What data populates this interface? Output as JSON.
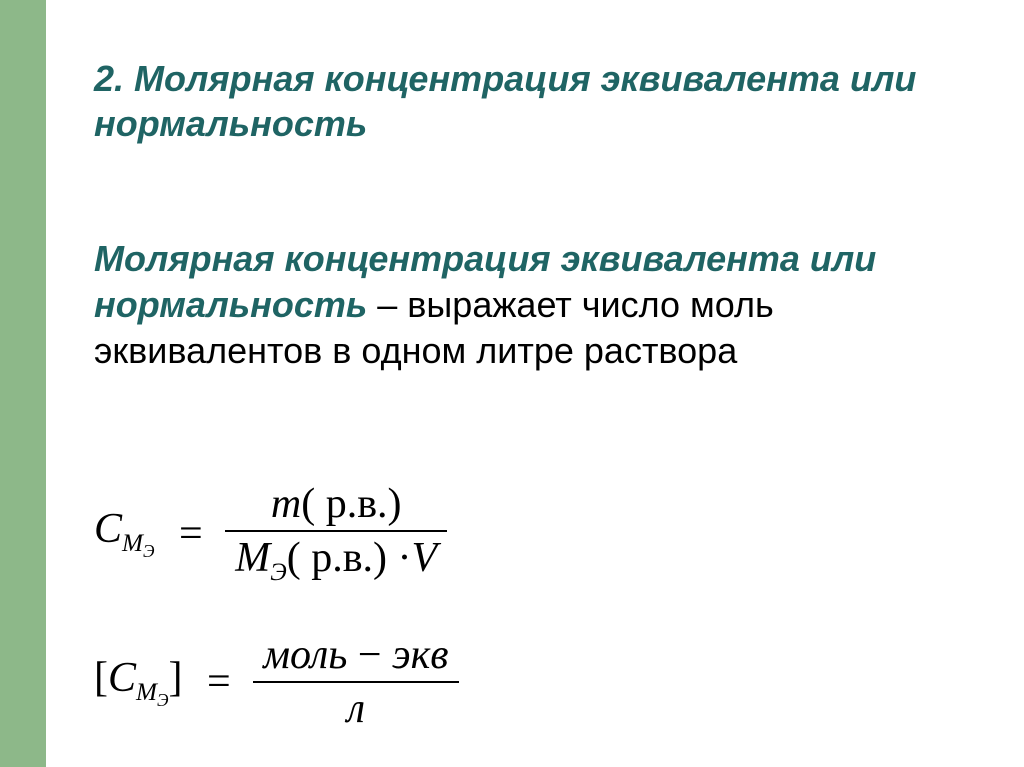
{
  "colors": {
    "sidebar": "#8db889",
    "title": "#1f6464",
    "body_em": "#1f6464",
    "body_plain": "#000000",
    "formula": "#000000",
    "background": "#ffffff"
  },
  "title": "2. Молярная концентрация эквивалента или нормальность",
  "body": {
    "emphasis": "Молярная концентрация эквивалента или нормальность",
    "dash": " – ",
    "plain": "выражает число моль эквивалентов в одном литре раствора"
  },
  "formula1": {
    "lhs_C": "C",
    "lhs_M": "M",
    "lhs_E": "Э",
    "eq": "=",
    "num_m": "m",
    "num_p": "( р.в.)",
    "den_M": "M",
    "den_E": "Э",
    "den_p": "( р.в.)",
    "den_dotV": "·V"
  },
  "formula2": {
    "lb": "[",
    "lhs_C": "C",
    "lhs_M": "M",
    "lhs_E": "Э",
    "rb": "]",
    "eq": "=",
    "num_mol": "моль",
    "num_dash": " − ",
    "num_ekv": "экв",
    "den": "л"
  },
  "style": {
    "title_fontsize": 36,
    "body_fontsize": 36,
    "formula_fontsize": 42,
    "font_family_body": "Arial",
    "font_family_formula": "Times New Roman"
  }
}
